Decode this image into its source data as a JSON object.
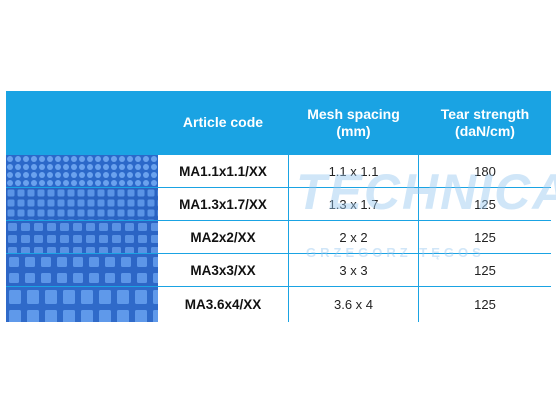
{
  "table": {
    "headers": {
      "article_code": "Article code",
      "mesh_spacing_line1": "Mesh spacing",
      "mesh_spacing_line2": "(mm)",
      "tear_strength_line1": "Tear strength",
      "tear_strength_line2": "(daN/cm)"
    },
    "rows": [
      {
        "code": "MA1.1x1.1/XX",
        "mesh": "1.1 x 1.1",
        "tear": "180"
      },
      {
        "code": "MA1.3x1.7/XX",
        "mesh": "1.3 x 1.7",
        "tear": "125"
      },
      {
        "code": "MA2x2/XX",
        "mesh": "2 x 2",
        "tear": "125"
      },
      {
        "code": "MA3x3/XX",
        "mesh": "3 x 3",
        "tear": "125"
      },
      {
        "code": "MA3.6x4/XX",
        "mesh": "3.6 x 4",
        "tear": "125"
      }
    ]
  },
  "watermark": {
    "main": "TECHNICAL",
    "sub": "GRZEGORZ TĘGOS"
  },
  "colors": {
    "header_bg": "#1aa3e3",
    "mesh_blue": "#2f6fd0"
  }
}
